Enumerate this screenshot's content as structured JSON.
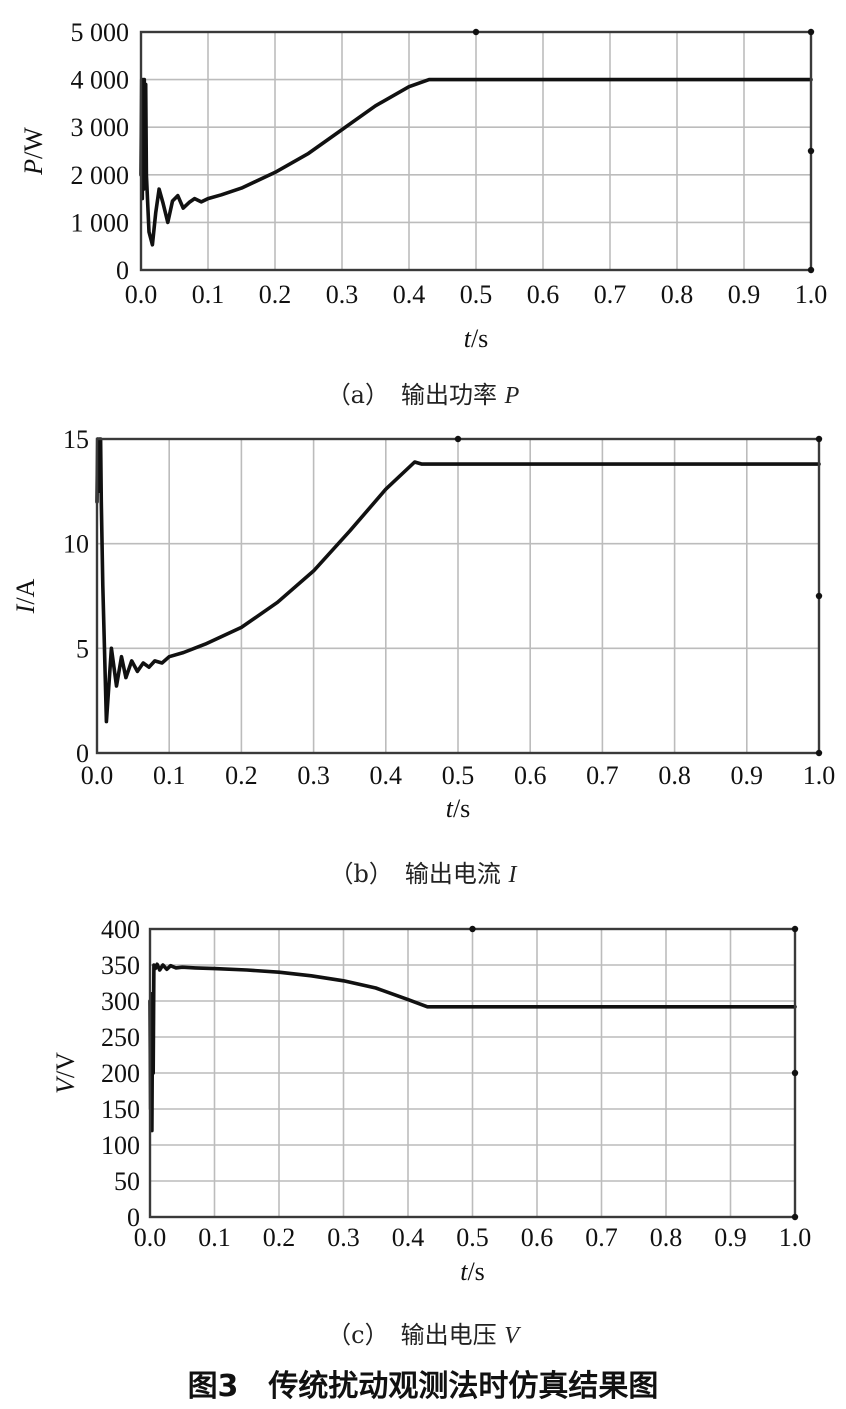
{
  "figure_title": "图3　传统扰动观测法时仿真结果图",
  "chart_data": [
    {
      "type": "line",
      "caption": {
        "prefix": "（a）　输出功率 ",
        "var": "P"
      },
      "ylabel": {
        "var": "P",
        "unit": "/W"
      },
      "xlabel": {
        "var": "t",
        "unit": "/s"
      },
      "xlim": [
        0,
        1.0
      ],
      "ylim": [
        0,
        5000
      ],
      "xticks": [
        0,
        0.1,
        0.2,
        0.3,
        0.4,
        0.5,
        0.6,
        0.7,
        0.8,
        0.9,
        1.0
      ],
      "xtick_labels": [
        "0.0",
        "0.1",
        "0.2",
        "0.3",
        "0.4",
        "0.5",
        "0.6",
        "0.7",
        "0.8",
        "0.9",
        "1.0"
      ],
      "yticks": [
        0,
        1000,
        2000,
        3000,
        4000,
        5000
      ],
      "ytick_labels": [
        "0",
        "1 000",
        "2 000",
        "3 000",
        "4 000",
        "5 000"
      ],
      "grid": true,
      "series": [
        {
          "x": [
            0,
            0.001,
            0.002,
            0.003,
            0.004,
            0.005,
            0.006,
            0.007,
            0.008,
            0.012,
            0.017,
            0.022,
            0.027,
            0.033,
            0.04,
            0.047,
            0.055,
            0.063,
            0.072,
            0.08,
            0.09,
            0.1,
            0.12,
            0.15,
            0.2,
            0.25,
            0.3,
            0.35,
            0.4,
            0.43,
            0.44,
            0.5,
            0.6,
            0.7,
            0.8,
            0.9,
            1.0
          ],
          "y": [
            2000,
            4000,
            1500,
            4000,
            1700,
            4000,
            1800,
            3900,
            2000,
            800,
            530,
            1200,
            1700,
            1400,
            1000,
            1450,
            1560,
            1300,
            1420,
            1500,
            1430,
            1500,
            1580,
            1720,
            2050,
            2450,
            2950,
            3450,
            3850,
            4000,
            4000,
            4000,
            4000,
            4000,
            4000,
            4000,
            4000
          ]
        }
      ]
    },
    {
      "type": "line",
      "caption": {
        "prefix": "（b）　输出电流 ",
        "var": "I"
      },
      "ylabel": {
        "var": "I",
        "unit": "/A"
      },
      "xlabel": {
        "var": "t",
        "unit": "/s"
      },
      "xlim": [
        0,
        1.0
      ],
      "ylim": [
        0,
        15
      ],
      "xticks": [
        0,
        0.1,
        0.2,
        0.3,
        0.4,
        0.5,
        0.6,
        0.7,
        0.8,
        0.9,
        1.0
      ],
      "xtick_labels": [
        "0.0",
        "0.1",
        "0.2",
        "0.3",
        "0.4",
        "0.5",
        "0.6",
        "0.7",
        "0.8",
        "0.9",
        "1.0"
      ],
      "yticks": [
        0,
        5,
        10,
        15
      ],
      "ytick_labels": [
        "0",
        "5",
        "10",
        "15"
      ],
      "grid": true,
      "series": [
        {
          "x": [
            0,
            0.001,
            0.002,
            0.003,
            0.004,
            0.005,
            0.006,
            0.008,
            0.013,
            0.02,
            0.027,
            0.034,
            0.04,
            0.048,
            0.056,
            0.064,
            0.072,
            0.08,
            0.09,
            0.1,
            0.12,
            0.15,
            0.2,
            0.25,
            0.3,
            0.35,
            0.4,
            0.44,
            0.45,
            0.5,
            0.6,
            0.7,
            0.8,
            0.9,
            1.0
          ],
          "y": [
            12,
            15,
            12.5,
            15,
            13,
            15,
            12,
            8,
            1.5,
            5,
            3.2,
            4.6,
            3.6,
            4.4,
            3.9,
            4.3,
            4.1,
            4.4,
            4.3,
            4.6,
            4.8,
            5.2,
            6.0,
            7.2,
            8.7,
            10.6,
            12.6,
            13.9,
            13.8,
            13.8,
            13.8,
            13.8,
            13.8,
            13.8,
            13.8
          ]
        }
      ]
    },
    {
      "type": "line",
      "caption": {
        "prefix": "（c）　输出电压 ",
        "var": "V"
      },
      "ylabel": {
        "var": "V",
        "unit": "/V"
      },
      "xlabel": {
        "var": "t",
        "unit": "/s"
      },
      "xlim": [
        0,
        1.0
      ],
      "ylim": [
        0,
        400
      ],
      "xticks": [
        0,
        0.1,
        0.2,
        0.3,
        0.4,
        0.5,
        0.6,
        0.7,
        0.8,
        0.9,
        1.0
      ],
      "xtick_labels": [
        "0.0",
        "0.1",
        "0.2",
        "0.3",
        "0.4",
        "0.5",
        "0.6",
        "0.7",
        "0.8",
        "0.9",
        "1.0"
      ],
      "yticks": [
        0,
        50,
        100,
        150,
        200,
        250,
        300,
        350,
        400
      ],
      "ytick_labels": [
        "0",
        "50",
        "100",
        "150",
        "200",
        "250",
        "300",
        "350",
        "400"
      ],
      "grid": true,
      "series": [
        {
          "x": [
            0,
            0.001,
            0.002,
            0.003,
            0.004,
            0.005,
            0.006,
            0.008,
            0.011,
            0.015,
            0.02,
            0.026,
            0.032,
            0.04,
            0.05,
            0.07,
            0.1,
            0.15,
            0.2,
            0.25,
            0.3,
            0.35,
            0.4,
            0.43,
            0.44,
            0.5,
            0.6,
            0.7,
            0.8,
            0.9,
            1.0
          ],
          "y": [
            300,
            150,
            310,
            120,
            300,
            200,
            350,
            345,
            351,
            343,
            350,
            344,
            349,
            346,
            347,
            346,
            345,
            343,
            340,
            335,
            328,
            318,
            302,
            292,
            292,
            292,
            292,
            292,
            292,
            292,
            292
          ]
        }
      ]
    }
  ]
}
